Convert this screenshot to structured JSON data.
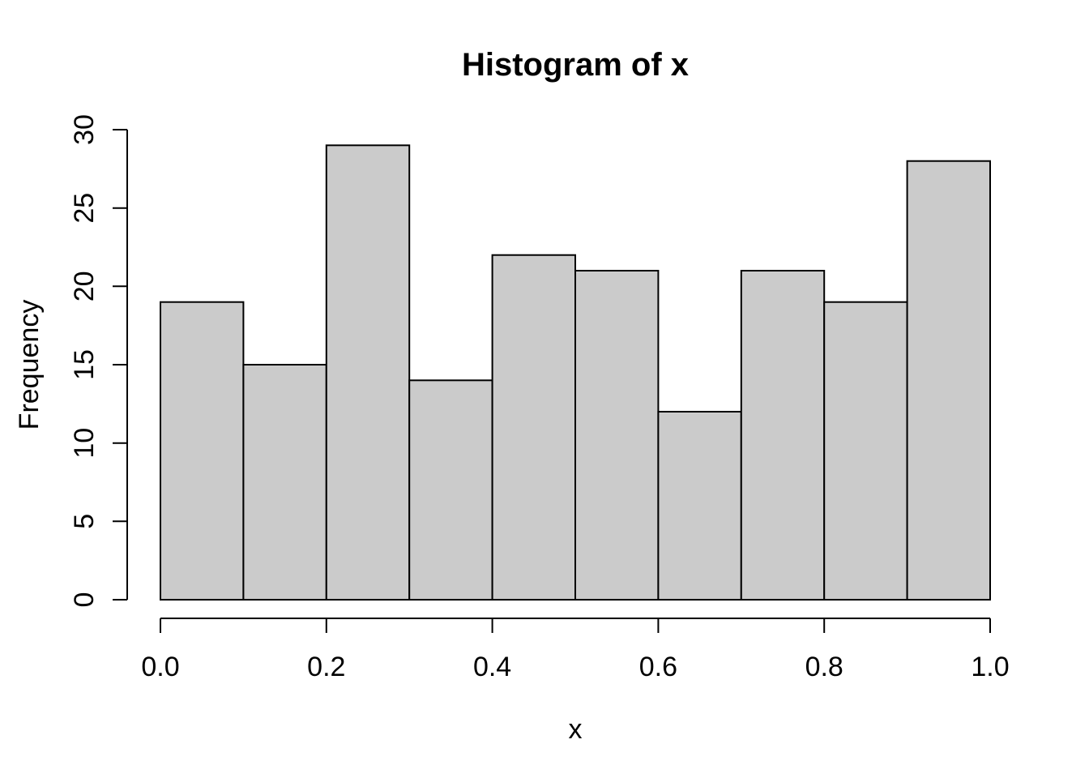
{
  "chart_data": {
    "type": "bar",
    "subtype": "histogram",
    "title": "Histogram of x",
    "xlabel": "x",
    "ylabel": "Frequency",
    "bin_edges": [
      0.0,
      0.1,
      0.2,
      0.3,
      0.4,
      0.5,
      0.6,
      0.7,
      0.8,
      0.9,
      1.0
    ],
    "categories": [
      "0.0-0.1",
      "0.1-0.2",
      "0.2-0.3",
      "0.3-0.4",
      "0.4-0.5",
      "0.5-0.6",
      "0.6-0.7",
      "0.7-0.8",
      "0.8-0.9",
      "0.9-1.0"
    ],
    "values": [
      19,
      15,
      29,
      14,
      22,
      21,
      12,
      21,
      19,
      28
    ],
    "xlim": [
      0.0,
      1.0
    ],
    "ylim": [
      0,
      30
    ],
    "x_tick_values": [
      0.0,
      0.2,
      0.4,
      0.6,
      0.8,
      1.0
    ],
    "x_tick_labels": [
      "0.0",
      "0.2",
      "0.4",
      "0.6",
      "0.8",
      "1.0"
    ],
    "y_tick_values": [
      0,
      5,
      10,
      15,
      20,
      25,
      30
    ],
    "y_tick_labels": [
      "0",
      "5",
      "10",
      "15",
      "20",
      "25",
      "30"
    ],
    "grid": false,
    "legend_position": "none",
    "colors": {
      "bar_fill": "#CBCBCB",
      "bar_border": "#000000",
      "axis": "#000000",
      "text": "#000000",
      "background": "#FFFFFF"
    }
  }
}
